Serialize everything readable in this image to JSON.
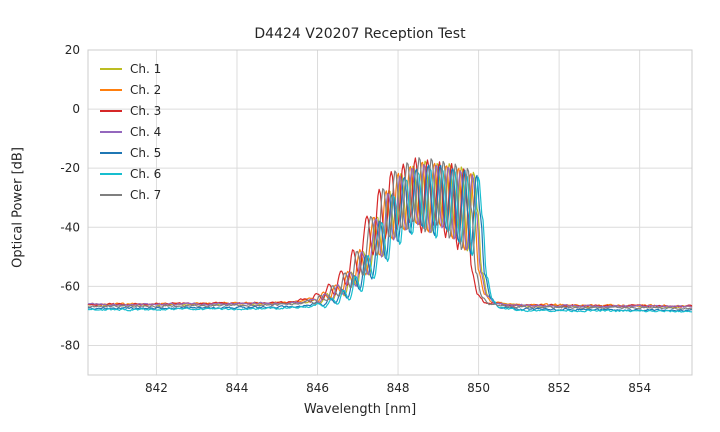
{
  "chart_data": {
    "type": "line",
    "title": "D4424 V20207 Reception Test",
    "xlabel": "Wavelength [nm]",
    "ylabel": "Optical Power [dB]",
    "xlim": [
      840.3,
      855.3
    ],
    "ylim": [
      -90,
      20
    ],
    "xticks": [
      842,
      844,
      846,
      848,
      850,
      852,
      854
    ],
    "yticks": [
      20,
      0,
      -20,
      -40,
      -60,
      -80
    ],
    "grid": true,
    "grid_color": "#dcdcdc",
    "frame_color": "#cccccc",
    "legend_position": "upper left",
    "legend_labels": [
      "Ch. 1",
      "Ch. 2",
      "Ch. 3",
      "Ch. 4",
      "Ch. 5",
      "Ch. 6",
      "Ch. 7"
    ],
    "series": [
      {
        "name": "Ch. 1",
        "color": "#bcbd22",
        "shift_nm": 0.03,
        "floor_offset_db": 0.0,
        "peak_offset_db": 0.0
      },
      {
        "name": "Ch. 2",
        "color": "#ff7f0e",
        "shift_nm": -0.05,
        "floor_offset_db": 0.3,
        "peak_offset_db": -0.5
      },
      {
        "name": "Ch. 3",
        "color": "#d62728",
        "shift_nm": -0.22,
        "floor_offset_db": 0.2,
        "peak_offset_db": 0.5
      },
      {
        "name": "Ch. 4",
        "color": "#9467bd",
        "shift_nm": 0.0,
        "floor_offset_db": 0.1,
        "peak_offset_db": -1.0
      },
      {
        "name": "Ch. 5",
        "color": "#1f77b4",
        "shift_nm": 0.1,
        "floor_offset_db": -1.2,
        "peak_offset_db": 0.0
      },
      {
        "name": "Ch. 6",
        "color": "#17becf",
        "shift_nm": 0.15,
        "floor_offset_db": -1.6,
        "peak_offset_db": -0.5
      },
      {
        "name": "Ch. 7",
        "color": "#7f7f7f",
        "shift_nm": -0.12,
        "floor_offset_db": -0.5,
        "peak_offset_db": 1.8
      }
    ],
    "base_profile_points": [
      [
        839.5,
        -66.2
      ],
      [
        840.0,
        -66.2
      ],
      [
        841.0,
        -66.3
      ],
      [
        842.0,
        -66.2
      ],
      [
        843.0,
        -66.1
      ],
      [
        844.0,
        -66.0
      ],
      [
        845.0,
        -65.8
      ],
      [
        845.6,
        -65.5
      ],
      [
        845.9,
        -64.5
      ],
      [
        846.05,
        -65.5
      ],
      [
        846.2,
        -62.5
      ],
      [
        846.35,
        -64.5
      ],
      [
        846.5,
        -59.5
      ],
      [
        846.65,
        -63.0
      ],
      [
        846.8,
        -55.0
      ],
      [
        846.95,
        -60.0
      ],
      [
        847.1,
        -48.0
      ],
      [
        847.25,
        -56.0
      ],
      [
        847.45,
        -36.5
      ],
      [
        847.6,
        -50.0
      ],
      [
        847.75,
        -27.5
      ],
      [
        847.9,
        -44.0
      ],
      [
        848.05,
        -21.5
      ],
      [
        848.2,
        -41.0
      ],
      [
        848.35,
        -19.0
      ],
      [
        848.5,
        -39.0
      ],
      [
        848.65,
        -17.5
      ],
      [
        848.8,
        -42.0
      ],
      [
        848.95,
        -17.8
      ],
      [
        849.1,
        -40.0
      ],
      [
        849.25,
        -18.5
      ],
      [
        849.4,
        -44.0
      ],
      [
        849.55,
        -19.5
      ],
      [
        849.7,
        -48.0
      ],
      [
        849.85,
        -21.0
      ],
      [
        849.95,
        -35.0
      ],
      [
        850.05,
        -55.0
      ],
      [
        850.2,
        -63.0
      ],
      [
        850.4,
        -65.8
      ],
      [
        851.0,
        -66.5
      ],
      [
        852.0,
        -66.6
      ],
      [
        853.0,
        -66.7
      ],
      [
        854.0,
        -66.8
      ],
      [
        855.3,
        -66.9
      ],
      [
        856.0,
        -66.9
      ]
    ],
    "noise_floor_db": -66.5,
    "peak_max_db": -17
  }
}
